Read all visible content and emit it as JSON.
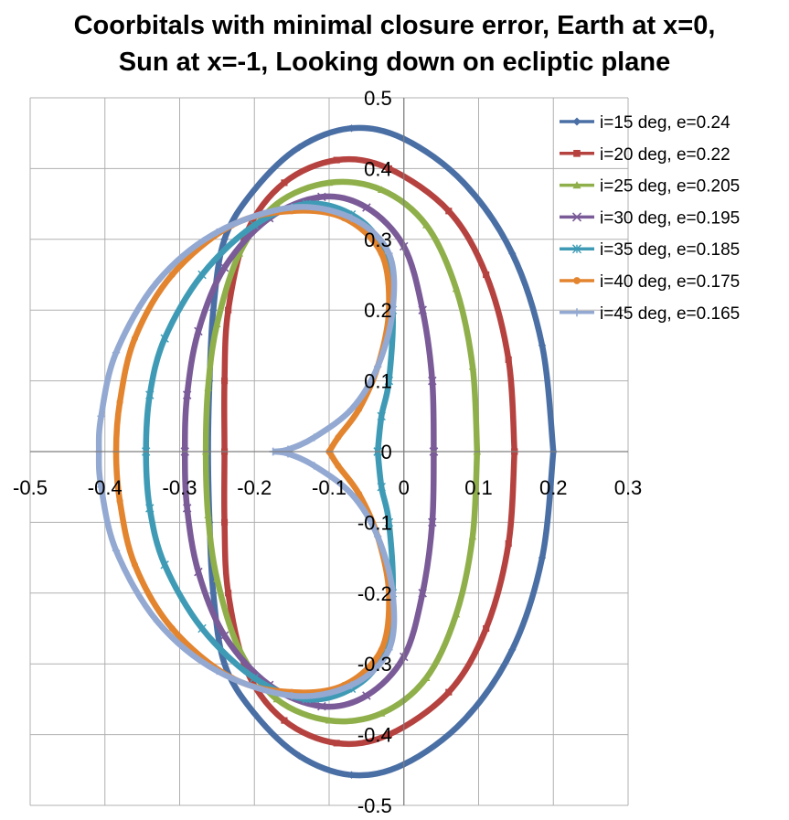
{
  "chart_data": {
    "type": "scatter",
    "title_lines": [
      "Coorbitals with minimal closure error, Earth at x=0,",
      "Sun at x=-1, Looking down on ecliptic plane"
    ],
    "xlabel": "",
    "ylabel": "",
    "xlim": [
      -0.5,
      0.3
    ],
    "ylim": [
      -0.5,
      0.5
    ],
    "x_ticks": [
      -0.5,
      -0.4,
      -0.3,
      -0.2,
      -0.1,
      0,
      0.1,
      0.2,
      0.3
    ],
    "x_tick_labels": [
      "-0.5",
      "-0.4",
      "-0.3",
      "-0.2",
      "-0.1",
      "0",
      "0.1",
      "0.2",
      "0.3"
    ],
    "y_ticks": [
      0.5,
      0.4,
      0.3,
      0.2,
      0.1,
      0,
      -0.1,
      -0.2,
      -0.3,
      -0.4,
      -0.5
    ],
    "y_tick_labels": [
      "0.5",
      "0.4",
      "0.3",
      "0.2",
      "0.1",
      "0",
      "-0.1",
      "-0.2",
      "-0.3",
      "-0.4",
      "-0.5"
    ],
    "grid": true,
    "legend_position": "top-right",
    "series": [
      {
        "name": "i=15 deg, e=0.24",
        "color": "#4a6fa5",
        "marker": "diamond",
        "points": [
          [
            0.2,
            0
          ],
          [
            0.185,
            0.15
          ],
          [
            0.145,
            0.28
          ],
          [
            0.08,
            0.38
          ],
          [
            0,
            0.442
          ],
          [
            -0.07,
            0.457
          ],
          [
            -0.14,
            0.43
          ],
          [
            -0.2,
            0.37
          ],
          [
            -0.24,
            0.3
          ],
          [
            -0.255,
            0.2
          ],
          [
            -0.26,
            0.1
          ],
          [
            -0.262,
            0
          ],
          [
            -0.26,
            -0.1
          ],
          [
            -0.255,
            -0.2
          ],
          [
            -0.24,
            -0.3
          ],
          [
            -0.2,
            -0.37
          ],
          [
            -0.14,
            -0.43
          ],
          [
            -0.07,
            -0.457
          ],
          [
            0,
            -0.442
          ],
          [
            0.08,
            -0.38
          ],
          [
            0.145,
            -0.28
          ],
          [
            0.185,
            -0.15
          ],
          [
            0.2,
            0
          ]
        ]
      },
      {
        "name": "i=20 deg, e=0.22",
        "color": "#b5423f",
        "marker": "square",
        "points": [
          [
            0.148,
            0
          ],
          [
            0.14,
            0.13
          ],
          [
            0.11,
            0.25
          ],
          [
            0.06,
            0.34
          ],
          [
            -0.02,
            0.4
          ],
          [
            -0.09,
            0.412
          ],
          [
            -0.16,
            0.38
          ],
          [
            -0.21,
            0.31
          ],
          [
            -0.235,
            0.2
          ],
          [
            -0.24,
            0.1
          ],
          [
            -0.24,
            0
          ],
          [
            -0.24,
            -0.1
          ],
          [
            -0.235,
            -0.2
          ],
          [
            -0.21,
            -0.31
          ],
          [
            -0.16,
            -0.38
          ],
          [
            -0.09,
            -0.412
          ],
          [
            -0.02,
            -0.4
          ],
          [
            0.06,
            -0.34
          ],
          [
            0.11,
            -0.25
          ],
          [
            0.14,
            -0.13
          ],
          [
            0.148,
            0
          ]
        ]
      },
      {
        "name": "i=25 deg, e=0.205",
        "color": "#8faf4a",
        "marker": "triangle",
        "points": [
          [
            0.098,
            0
          ],
          [
            0.092,
            0.12
          ],
          [
            0.07,
            0.23
          ],
          [
            0.03,
            0.32
          ],
          [
            -0.03,
            0.37
          ],
          [
            -0.1,
            0.38
          ],
          [
            -0.17,
            0.35
          ],
          [
            -0.22,
            0.28
          ],
          [
            -0.25,
            0.18
          ],
          [
            -0.262,
            0.09
          ],
          [
            -0.265,
            0
          ],
          [
            -0.262,
            -0.09
          ],
          [
            -0.25,
            -0.18
          ],
          [
            -0.22,
            -0.28
          ],
          [
            -0.17,
            -0.35
          ],
          [
            -0.1,
            -0.38
          ],
          [
            -0.03,
            -0.37
          ],
          [
            0.03,
            -0.32
          ],
          [
            0.07,
            -0.23
          ],
          [
            0.092,
            -0.12
          ],
          [
            0.098,
            0
          ]
        ]
      },
      {
        "name": "i=30 deg, e=0.195",
        "color": "#7a5b98",
        "marker": "x",
        "points": [
          [
            0.04,
            0
          ],
          [
            0.038,
            0.1
          ],
          [
            0.025,
            0.2
          ],
          [
            0,
            0.29
          ],
          [
            -0.05,
            0.345
          ],
          [
            -0.11,
            0.36
          ],
          [
            -0.18,
            0.33
          ],
          [
            -0.24,
            0.26
          ],
          [
            -0.275,
            0.17
          ],
          [
            -0.29,
            0.08
          ],
          [
            -0.293,
            0
          ],
          [
            -0.29,
            -0.08
          ],
          [
            -0.275,
            -0.17
          ],
          [
            -0.24,
            -0.26
          ],
          [
            -0.18,
            -0.33
          ],
          [
            -0.11,
            -0.36
          ],
          [
            -0.05,
            -0.345
          ],
          [
            0,
            -0.29
          ],
          [
            0.025,
            -0.2
          ],
          [
            0.038,
            -0.1
          ],
          [
            0.04,
            0
          ]
        ]
      },
      {
        "name": "i=35 deg, e=0.185",
        "color": "#3f9bb5",
        "marker": "star",
        "points": [
          [
            -0.035,
            0
          ],
          [
            -0.03,
            0.05
          ],
          [
            -0.02,
            0.1
          ],
          [
            -0.015,
            0.2
          ],
          [
            -0.03,
            0.29
          ],
          [
            -0.07,
            0.335
          ],
          [
            -0.13,
            0.35
          ],
          [
            -0.2,
            0.32
          ],
          [
            -0.27,
            0.25
          ],
          [
            -0.32,
            0.16
          ],
          [
            -0.34,
            0.08
          ],
          [
            -0.345,
            0
          ],
          [
            -0.34,
            -0.08
          ],
          [
            -0.32,
            -0.16
          ],
          [
            -0.27,
            -0.25
          ],
          [
            -0.2,
            -0.32
          ],
          [
            -0.13,
            -0.35
          ],
          [
            -0.07,
            -0.335
          ],
          [
            -0.03,
            -0.29
          ],
          [
            -0.015,
            -0.2
          ],
          [
            -0.02,
            -0.1
          ],
          [
            -0.03,
            -0.05
          ],
          [
            -0.035,
            0
          ]
        ]
      },
      {
        "name": "i=40 deg, e=0.175",
        "color": "#e3842f",
        "marker": "circle",
        "points": [
          [
            -0.1,
            0
          ],
          [
            -0.088,
            0.02
          ],
          [
            -0.06,
            0.06
          ],
          [
            -0.035,
            0.12
          ],
          [
            -0.02,
            0.2
          ],
          [
            -0.03,
            0.28
          ],
          [
            -0.08,
            0.33
          ],
          [
            -0.15,
            0.34
          ],
          [
            -0.23,
            0.32
          ],
          [
            -0.31,
            0.25
          ],
          [
            -0.36,
            0.16
          ],
          [
            -0.38,
            0.07
          ],
          [
            -0.385,
            0
          ],
          [
            -0.38,
            -0.07
          ],
          [
            -0.36,
            -0.16
          ],
          [
            -0.31,
            -0.25
          ],
          [
            -0.23,
            -0.32
          ],
          [
            -0.15,
            -0.34
          ],
          [
            -0.08,
            -0.33
          ],
          [
            -0.03,
            -0.28
          ],
          [
            -0.02,
            -0.2
          ],
          [
            -0.035,
            -0.12
          ],
          [
            -0.06,
            -0.06
          ],
          [
            -0.088,
            -0.02
          ],
          [
            -0.1,
            0
          ]
        ]
      },
      {
        "name": "i=45 deg, e=0.165",
        "color": "#93a9d2",
        "marker": "plus",
        "points": [
          [
            -0.175,
            0
          ],
          [
            -0.155,
            0.003
          ],
          [
            -0.12,
            0.02
          ],
          [
            -0.07,
            0.06
          ],
          [
            -0.035,
            0.12
          ],
          [
            -0.015,
            0.2
          ],
          [
            -0.02,
            0.28
          ],
          [
            -0.07,
            0.33
          ],
          [
            -0.15,
            0.345
          ],
          [
            -0.25,
            0.31
          ],
          [
            -0.33,
            0.24
          ],
          [
            -0.385,
            0.14
          ],
          [
            -0.405,
            0.05
          ],
          [
            -0.408,
            0
          ],
          [
            -0.405,
            -0.05
          ],
          [
            -0.385,
            -0.14
          ],
          [
            -0.33,
            -0.24
          ],
          [
            -0.25,
            -0.31
          ],
          [
            -0.15,
            -0.345
          ],
          [
            -0.07,
            -0.33
          ],
          [
            -0.02,
            -0.28
          ],
          [
            -0.015,
            -0.2
          ],
          [
            -0.035,
            -0.12
          ],
          [
            -0.07,
            -0.06
          ],
          [
            -0.12,
            -0.02
          ],
          [
            -0.155,
            -0.003
          ],
          [
            -0.175,
            0
          ]
        ]
      }
    ]
  }
}
